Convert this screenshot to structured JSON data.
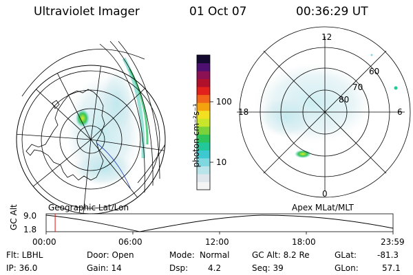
{
  "header": {
    "title": "Ultraviolet Imager",
    "date": "01 Oct 07",
    "time": "00:36:29 UT"
  },
  "colorbar": {
    "unit_label": "photon cm⁻²s⁻¹",
    "tick_100": "100",
    "tick_10": "10",
    "colors": [
      "#f4f4f4",
      "#dfe7ec",
      "#b8e4ea",
      "#7fd7e0",
      "#3ec9d0",
      "#22c79a",
      "#2ec45a",
      "#7bd23a",
      "#c9e62a",
      "#f3e020",
      "#f5a20f",
      "#f0651a",
      "#e2201c",
      "#b0102a",
      "#8b1054",
      "#4d1070",
      "#140a30"
    ]
  },
  "left_panel": {
    "caption": "Geographic Lat/Lon"
  },
  "right_panel": {
    "caption": "Apex MLat/MLT",
    "mlt_12": "12",
    "mlt_18": "18",
    "mlt_6": "6",
    "mlt_0": "0",
    "lat_60": "60",
    "lat_70": "70",
    "lat_80": "80"
  },
  "timeline": {
    "ylabel": "GC Alt",
    "ymax": "9.0",
    "ymin": "1.8",
    "ticks": [
      "00:00",
      "06:00",
      "12:00",
      "18:00",
      "23:59"
    ],
    "current_time_fraction": 0.026
  },
  "info": {
    "filter": "Flt: LBHL",
    "ip": "IP: 36.0",
    "door": "Door: Open",
    "gain": "Gain: 14",
    "mode_label": "Mode:",
    "mode_value": "Normal",
    "dsp_label": "Dsp:",
    "dsp_value": "4.2",
    "gc_alt": "GC Alt: 8.2 Re",
    "seq": "Seq: 39",
    "glat_label": "GLat:",
    "glat_value": "-81.3",
    "glon_label": "GLon:",
    "glon_value": "57.1"
  }
}
